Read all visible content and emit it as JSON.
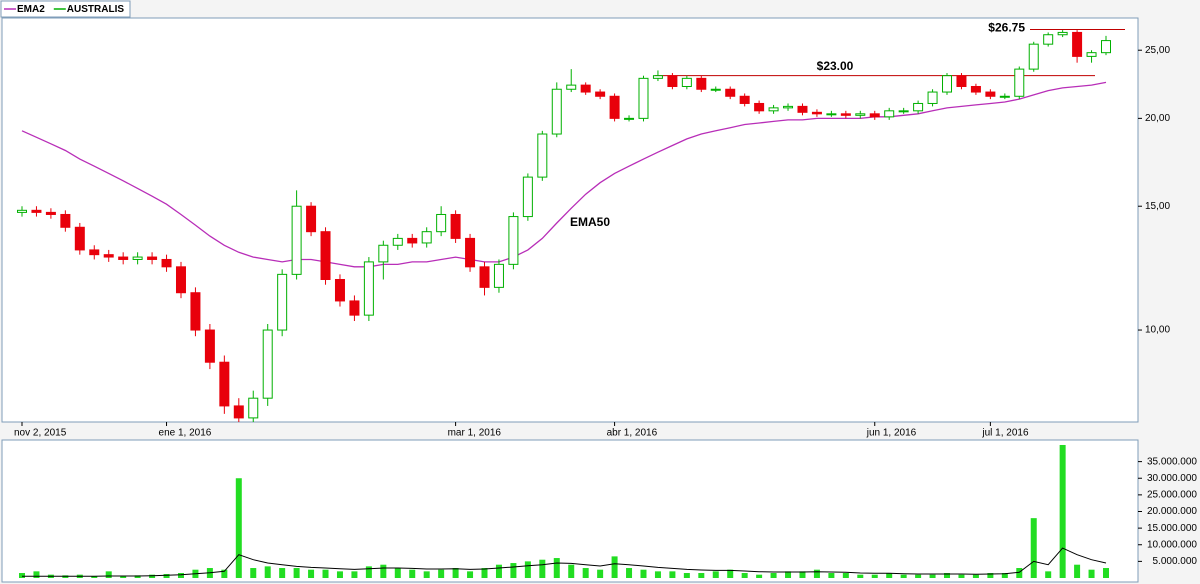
{
  "chart_data": [
    {
      "type": "candlestick",
      "categories": [
        "nov 2, 2015",
        null,
        null,
        null,
        null,
        null,
        null,
        null,
        null,
        null,
        "ene 1, 2016",
        null,
        null,
        null,
        null,
        null,
        null,
        null,
        null,
        null,
        null,
        null,
        null,
        null,
        null,
        null,
        null,
        null,
        null,
        null,
        "mar 1, 2016",
        null,
        null,
        null,
        null,
        null,
        null,
        null,
        null,
        null,
        null,
        "abr 1, 2016",
        null,
        null,
        null,
        null,
        null,
        null,
        null,
        null,
        null,
        null,
        null,
        null,
        null,
        null,
        null,
        null,
        null,
        "jun 1, 2016",
        null,
        null,
        null,
        null,
        null,
        null,
        null,
        "jul 1, 2016",
        null,
        null,
        null,
        null,
        null,
        null,
        null,
        null
      ],
      "series": [
        {
          "name": "AUSTRALIS",
          "color": "#00b000",
          "down_color": "#e8000b",
          "open": [
            14.7,
            14.8,
            14.7,
            14.6,
            14.0,
            13.0,
            12.8,
            12.7,
            12.6,
            12.7,
            12.6,
            12.3,
            11.3,
            10.0,
            9.0,
            7.8,
            7.5,
            8.0,
            10.0,
            12.0,
            15.0,
            13.8,
            11.8,
            11.0,
            10.5,
            12.5,
            13.2,
            13.5,
            13.3,
            13.8,
            14.6,
            13.5,
            12.3,
            11.5,
            12.4,
            14.5,
            16.5,
            19.0,
            22.0,
            22.3,
            21.8,
            21.5,
            20.0,
            20.0,
            22.8,
            23.0,
            22.2,
            22.8,
            22.0,
            22.0,
            21.5,
            21.0,
            20.5,
            20.7,
            20.8,
            20.4,
            20.3,
            20.3,
            20.2,
            20.3,
            20.1,
            20.5,
            20.5,
            21.0,
            21.8,
            23.0,
            22.2,
            21.8,
            21.5,
            21.5,
            23.5,
            25.5,
            26.3,
            26.5,
            24.5,
            24.8
          ],
          "high": [
            15.0,
            15.0,
            14.9,
            14.8,
            14.2,
            13.2,
            13.0,
            12.9,
            12.9,
            12.9,
            12.8,
            12.5,
            11.5,
            10.2,
            9.2,
            8.0,
            8.2,
            10.2,
            12.2,
            15.8,
            15.2,
            14.0,
            12.0,
            11.2,
            12.7,
            13.4,
            13.7,
            13.7,
            14.0,
            15.0,
            14.8,
            13.7,
            12.5,
            12.6,
            14.7,
            16.7,
            19.2,
            22.5,
            23.5,
            22.5,
            22.0,
            21.7,
            20.2,
            23.0,
            23.4,
            23.2,
            23.0,
            23.0,
            22.2,
            22.2,
            21.7,
            21.2,
            20.9,
            21.0,
            21.0,
            20.6,
            20.5,
            20.5,
            20.5,
            20.5,
            20.7,
            20.7,
            21.2,
            22.0,
            23.2,
            23.2,
            22.4,
            22.0,
            21.7,
            23.7,
            25.7,
            26.5,
            26.7,
            26.7,
            25.0,
            26.2
          ],
          "low": [
            14.5,
            14.5,
            14.4,
            13.8,
            12.8,
            12.6,
            12.5,
            12.4,
            12.4,
            12.4,
            12.1,
            11.1,
            9.8,
            8.8,
            7.6,
            7.4,
            7.4,
            7.8,
            9.8,
            11.8,
            13.6,
            11.6,
            10.8,
            10.3,
            10.3,
            11.8,
            13.0,
            13.1,
            13.1,
            13.6,
            13.3,
            12.1,
            11.2,
            11.3,
            12.2,
            14.3,
            16.3,
            18.8,
            21.8,
            21.6,
            21.3,
            19.8,
            19.8,
            19.8,
            22.6,
            22.0,
            22.0,
            21.8,
            21.8,
            21.3,
            20.8,
            20.3,
            20.3,
            20.5,
            20.2,
            20.1,
            20.1,
            20.0,
            20.0,
            19.9,
            19.9,
            20.3,
            20.3,
            20.8,
            21.6,
            22.0,
            21.6,
            21.3,
            21.3,
            21.3,
            23.3,
            25.3,
            26.1,
            24.0,
            24.0,
            24.6
          ],
          "close": [
            14.8,
            14.7,
            14.6,
            14.0,
            13.0,
            12.8,
            12.7,
            12.6,
            12.7,
            12.6,
            12.3,
            11.3,
            10.0,
            9.0,
            7.8,
            7.5,
            8.0,
            10.0,
            12.0,
            15.0,
            13.8,
            11.8,
            11.0,
            10.5,
            12.5,
            13.2,
            13.5,
            13.3,
            13.8,
            14.6,
            13.5,
            12.3,
            11.5,
            12.4,
            14.5,
            16.5,
            19.0,
            22.0,
            22.3,
            21.8,
            21.5,
            20.0,
            20.0,
            22.8,
            23.0,
            22.2,
            22.8,
            22.0,
            22.0,
            21.5,
            21.0,
            20.5,
            20.7,
            20.8,
            20.4,
            20.3,
            20.3,
            20.2,
            20.3,
            20.1,
            20.5,
            20.5,
            21.0,
            21.8,
            23.0,
            22.2,
            21.8,
            21.5,
            21.5,
            23.5,
            25.5,
            26.3,
            26.5,
            24.5,
            24.8,
            25.8
          ]
        },
        {
          "name": "EMA2",
          "type": "line",
          "color": "#b82eb8",
          "values": [
            19.2,
            18.8,
            18.4,
            18.0,
            17.5,
            17.1,
            16.7,
            16.3,
            15.9,
            15.5,
            15.1,
            14.6,
            14.1,
            13.6,
            13.2,
            12.9,
            12.7,
            12.6,
            12.5,
            12.6,
            12.6,
            12.5,
            12.4,
            12.3,
            12.3,
            12.4,
            12.4,
            12.5,
            12.5,
            12.6,
            12.7,
            12.6,
            12.5,
            12.5,
            12.7,
            13.0,
            13.5,
            14.2,
            14.9,
            15.6,
            16.2,
            16.7,
            17.1,
            17.5,
            17.9,
            18.3,
            18.7,
            19.0,
            19.2,
            19.4,
            19.6,
            19.7,
            19.8,
            19.9,
            19.9,
            20.0,
            20.0,
            20.0,
            20.0,
            20.1,
            20.1,
            20.2,
            20.3,
            20.5,
            20.7,
            20.8,
            20.9,
            21.0,
            21.1,
            21.3,
            21.6,
            21.9,
            22.1,
            22.2,
            22.3,
            22.5
          ]
        }
      ],
      "annotations": [
        {
          "text": "EMA50",
          "color": "#dd0000"
        }
      ],
      "levels": [
        {
          "label": "$23.00",
          "value": 23,
          "color": "#c00000"
        },
        {
          "label": "$26.75",
          "value": 26.75,
          "color": "#c00000"
        }
      ],
      "log_scale": true,
      "ylim": [
        7.4,
        27.6
      ],
      "yticks": [
        {
          "value": 10,
          "label": "10,00"
        },
        {
          "value": 15,
          "label": "15,00"
        },
        {
          "value": 20,
          "label": "20,00"
        },
        {
          "value": 25,
          "label": "25,00"
        }
      ]
    },
    {
      "type": "bar",
      "series": [
        {
          "color": "#22dd22",
          "values": [
            1500000,
            2000000,
            1000000,
            800000,
            1000000,
            500000,
            2000000,
            500000,
            800000,
            1000000,
            1200000,
            1500000,
            2500000,
            3000000,
            2500000,
            30000000,
            3000000,
            3500000,
            3000000,
            3000000,
            2500000,
            2500000,
            2000000,
            2000000,
            3500000,
            4000000,
            3000000,
            2500000,
            2000000,
            2500000,
            3000000,
            2000000,
            3000000,
            4000000,
            4500000,
            5000000,
            5500000,
            6000000,
            4000000,
            3000000,
            2500000,
            6500000,
            3000000,
            2500000,
            2000000,
            2000000,
            1500000,
            1500000,
            2000000,
            2500000,
            1500000,
            1000000,
            1500000,
            2000000,
            2000000,
            2500000,
            1500000,
            1500000,
            1000000,
            1000000,
            1500000,
            1000000,
            1000000,
            1000000,
            1500000,
            1000000,
            1000000,
            1500000,
            1500000,
            3000000,
            18000000,
            2000000,
            40000000,
            4000000,
            2500000,
            3000000
          ]
        },
        {
          "type": "line",
          "color": "#000000",
          "values": [
            500000,
            500000,
            500000,
            500000,
            500000,
            500000,
            600000,
            600000,
            600000,
            700000,
            800000,
            1000000,
            1300000,
            1600000,
            2000000,
            7000000,
            5500000,
            4500000,
            4000000,
            3500000,
            3200000,
            3000000,
            2800000,
            2600000,
            2800000,
            3000000,
            3000000,
            2900000,
            2700000,
            2700000,
            2800000,
            2600000,
            2700000,
            3000000,
            3300000,
            3700000,
            4000000,
            4500000,
            4400000,
            4000000,
            3600000,
            4300000,
            4000000,
            3600000,
            3200000,
            2900000,
            2600000,
            2400000,
            2300000,
            2300000,
            2100000,
            1900000,
            1800000,
            1800000,
            1800000,
            1900000,
            1800000,
            1700000,
            1500000,
            1400000,
            1400000,
            1300000,
            1200000,
            1200000,
            1200000,
            1200000,
            1100000,
            1200000,
            1300000,
            1700000,
            5000000,
            4000000,
            9000000,
            7000000,
            5500000,
            4500000
          ]
        }
      ],
      "ylim": [
        0,
        41500000
      ],
      "yticks": [
        {
          "value": 5000000,
          "label": "5.000.000"
        },
        {
          "value": 10000000,
          "label": "10.000.000"
        },
        {
          "value": 15000000,
          "label": "15.000.000"
        },
        {
          "value": 20000000,
          "label": "20.000.000"
        },
        {
          "value": 25000000,
          "label": "25.000.000"
        },
        {
          "value": 30000000,
          "label": "30.000.000"
        },
        {
          "value": 35000000,
          "label": "35.000.000"
        }
      ]
    }
  ]
}
